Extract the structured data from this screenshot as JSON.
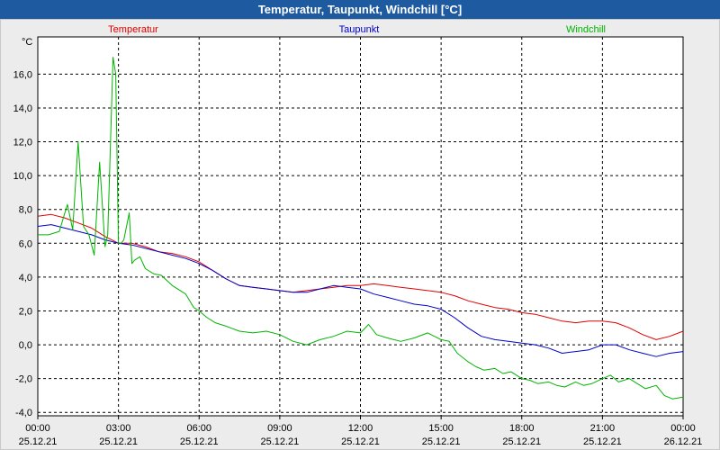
{
  "window": {
    "title": "Temperatur, Taupunkt, Windchill [°C]"
  },
  "chart_data": {
    "type": "line",
    "title": "Temperatur, Taupunkt, Windchill [°C]",
    "ylabel": "°C",
    "xlabel": "",
    "ylim": [
      -4.2,
      18.2
    ],
    "xlim": [
      0,
      24
    ],
    "yticks": [
      {
        "value": -4,
        "label": "-4,0"
      },
      {
        "value": -2,
        "label": "-2,0"
      },
      {
        "value": 0,
        "label": "0,0"
      },
      {
        "value": 2,
        "label": "2,0"
      },
      {
        "value": 4,
        "label": "4,0"
      },
      {
        "value": 6,
        "label": "6,0"
      },
      {
        "value": 8,
        "label": "8,0"
      },
      {
        "value": 10,
        "label": "10,0"
      },
      {
        "value": 12,
        "label": "12,0"
      },
      {
        "value": 14,
        "label": "14,0"
      },
      {
        "value": 16,
        "label": "16,0"
      }
    ],
    "xticks": [
      {
        "value": 0,
        "time": "00:00",
        "date": "25.12.21"
      },
      {
        "value": 3,
        "time": "03:00",
        "date": "25.12.21"
      },
      {
        "value": 6,
        "time": "06:00",
        "date": "25.12.21"
      },
      {
        "value": 9,
        "time": "09:00",
        "date": "25.12.21"
      },
      {
        "value": 12,
        "time": "12:00",
        "date": "25.12.21"
      },
      {
        "value": 15,
        "time": "15:00",
        "date": "25.12.21"
      },
      {
        "value": 18,
        "time": "18:00",
        "date": "25.12.21"
      },
      {
        "value": 21,
        "time": "21:00",
        "date": "25.12.21"
      },
      {
        "value": 24,
        "time": "00:00",
        "date": "26.12.21"
      }
    ],
    "grid": true,
    "series": [
      {
        "name": "Temperatur",
        "color": "#e00000",
        "legend_pos": "left",
        "x": [
          0,
          0.5,
          1,
          1.5,
          2,
          2.5,
          3,
          3.5,
          4,
          4.5,
          5,
          5.5,
          6,
          6.5,
          7,
          7.5,
          8,
          8.5,
          9,
          9.5,
          10,
          10.5,
          11,
          11.5,
          12,
          12.5,
          13,
          13.5,
          14,
          14.5,
          15,
          15.5,
          16,
          16.5,
          17,
          17.5,
          18,
          18.5,
          19,
          19.5,
          20,
          20.5,
          21,
          21.5,
          22,
          22.5,
          23,
          23.5,
          24
        ],
        "y": [
          7.6,
          7.7,
          7.5,
          7.2,
          6.9,
          6.4,
          6.0,
          6.0,
          5.8,
          5.5,
          5.4,
          5.2,
          4.9,
          4.4,
          3.9,
          3.5,
          3.4,
          3.3,
          3.2,
          3.1,
          3.2,
          3.3,
          3.4,
          3.5,
          3.5,
          3.6,
          3.5,
          3.4,
          3.3,
          3.2,
          3.1,
          2.9,
          2.6,
          2.4,
          2.2,
          2.1,
          1.9,
          1.8,
          1.6,
          1.4,
          1.3,
          1.4,
          1.4,
          1.3,
          1.0,
          0.6,
          0.3,
          0.5,
          0.8
        ]
      },
      {
        "name": "Taupunkt",
        "color": "#0000cc",
        "legend_pos": "center",
        "x": [
          0,
          0.5,
          1,
          1.5,
          2,
          2.5,
          3,
          3.5,
          4,
          4.5,
          5,
          5.5,
          6,
          6.5,
          7,
          7.5,
          8,
          8.5,
          9,
          9.5,
          10,
          10.5,
          11,
          11.5,
          12,
          12.5,
          13,
          13.5,
          14,
          14.5,
          15,
          15.5,
          16,
          16.5,
          17,
          17.5,
          18,
          18.5,
          19,
          19.5,
          20,
          20.5,
          21,
          21.5,
          22,
          22.5,
          23,
          23.5,
          24
        ],
        "y": [
          7.0,
          7.1,
          6.9,
          6.7,
          6.5,
          6.2,
          6.0,
          5.9,
          5.7,
          5.5,
          5.3,
          5.1,
          4.8,
          4.4,
          3.9,
          3.5,
          3.4,
          3.3,
          3.2,
          3.1,
          3.1,
          3.3,
          3.5,
          3.4,
          3.3,
          3.0,
          2.8,
          2.6,
          2.4,
          2.3,
          2.1,
          1.6,
          1.0,
          0.5,
          0.3,
          0.2,
          0.1,
          0.0,
          -0.2,
          -0.5,
          -0.4,
          -0.3,
          0.0,
          0.0,
          -0.3,
          -0.5,
          -0.7,
          -0.5,
          -0.4
        ]
      },
      {
        "name": "Windchill",
        "color": "#00b400",
        "legend_pos": "right",
        "x": [
          0,
          0.4,
          0.8,
          1.1,
          1.3,
          1.5,
          1.7,
          1.9,
          2.1,
          2.3,
          2.5,
          2.6,
          2.8,
          2.9,
          3.0,
          3.1,
          3.2,
          3.4,
          3.5,
          3.6,
          3.8,
          4.0,
          4.3,
          4.6,
          5.0,
          5.5,
          5.8,
          6.0,
          6.3,
          6.6,
          7.0,
          7.5,
          8.0,
          8.5,
          9.0,
          9.5,
          10.0,
          10.5,
          11.0,
          11.5,
          12.0,
          12.3,
          12.6,
          13.0,
          13.5,
          14.0,
          14.5,
          15.0,
          15.3,
          15.6,
          16.0,
          16.3,
          16.6,
          17.0,
          17.3,
          17.6,
          18.0,
          18.3,
          18.6,
          19.0,
          19.3,
          19.6,
          20.0,
          20.3,
          20.6,
          21.0,
          21.3,
          21.6,
          22.0,
          22.3,
          22.6,
          23.0,
          23.3,
          23.6,
          24.0
        ],
        "y": [
          6.5,
          6.5,
          6.7,
          8.3,
          6.8,
          12.0,
          7.0,
          6.5,
          5.3,
          10.8,
          5.8,
          6.5,
          17.0,
          16.0,
          6.0,
          6.0,
          6.2,
          7.8,
          4.8,
          5.0,
          5.2,
          4.5,
          4.2,
          4.1,
          3.5,
          3.0,
          2.2,
          2.0,
          1.6,
          1.3,
          1.1,
          0.8,
          0.7,
          0.8,
          0.6,
          0.2,
          0.0,
          0.3,
          0.5,
          0.8,
          0.7,
          1.2,
          0.6,
          0.4,
          0.2,
          0.4,
          0.7,
          0.3,
          0.2,
          -0.5,
          -1.0,
          -1.3,
          -1.5,
          -1.4,
          -1.7,
          -1.6,
          -2.0,
          -2.1,
          -2.3,
          -2.2,
          -2.4,
          -2.5,
          -2.2,
          -2.4,
          -2.3,
          -2.0,
          -1.8,
          -2.2,
          -2.0,
          -2.3,
          -2.6,
          -2.4,
          -3.0,
          -3.2,
          -3.1
        ]
      }
    ]
  }
}
